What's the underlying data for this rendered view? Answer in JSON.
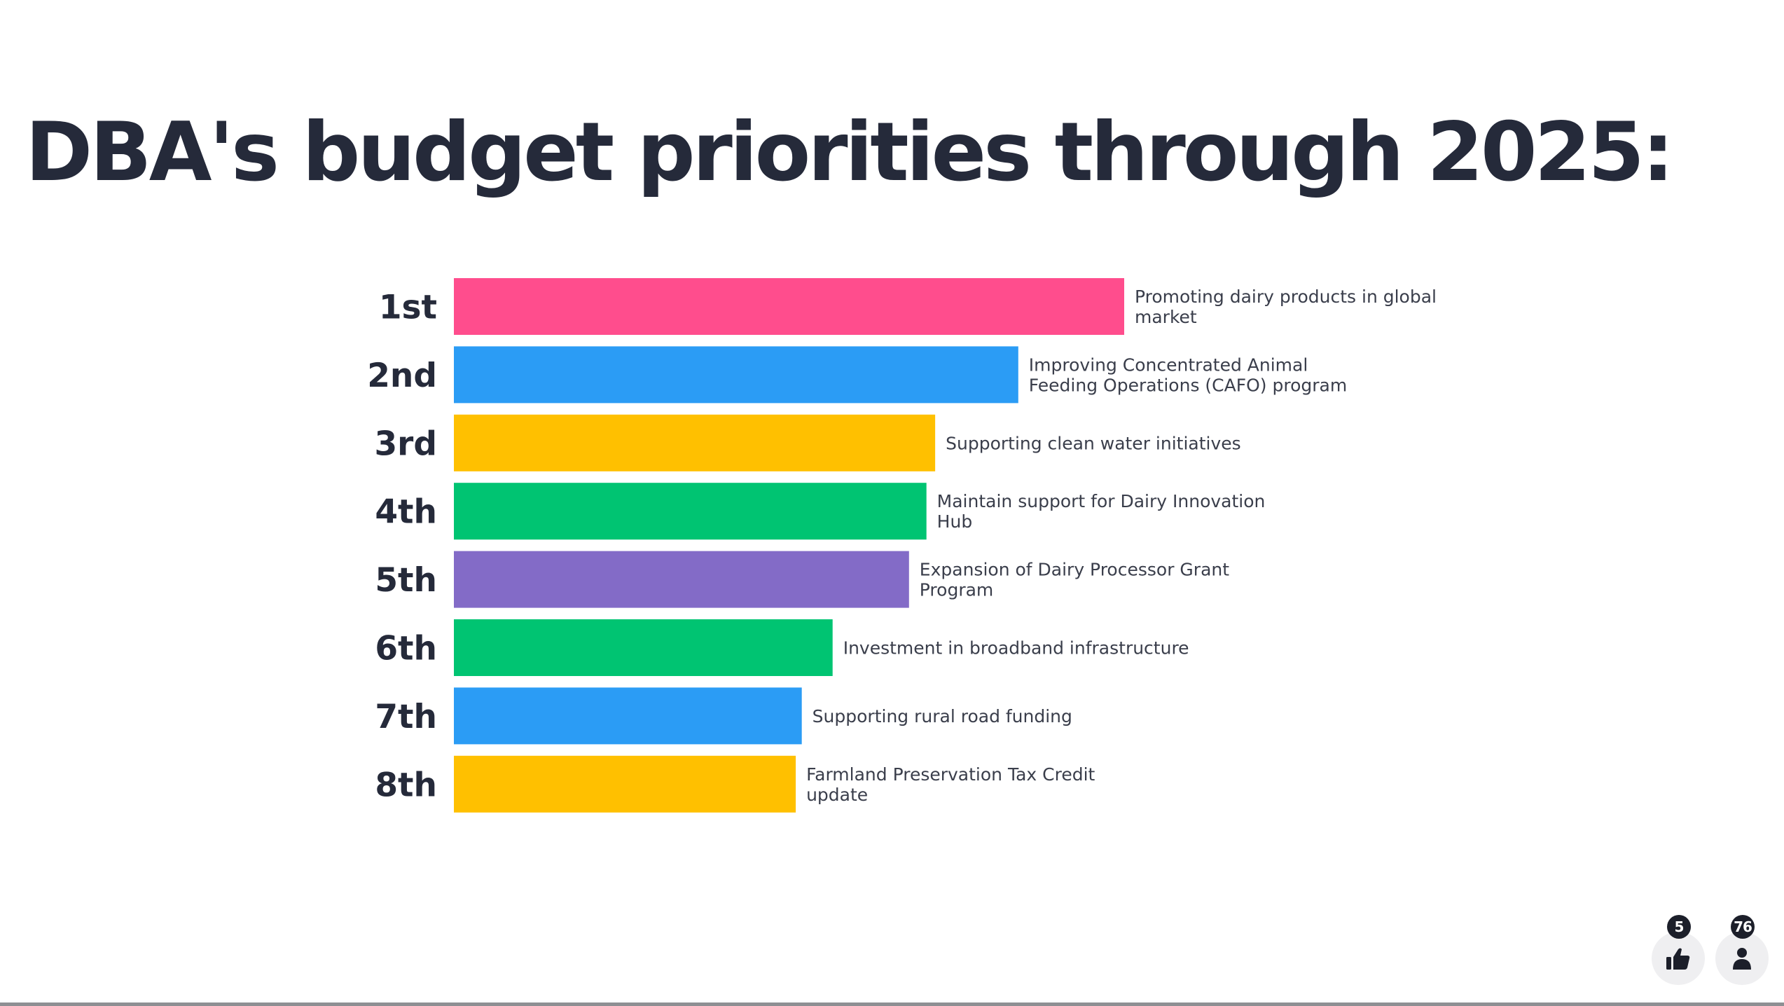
{
  "title": "DBA's budget priorities through 2025:",
  "chart_data": {
    "type": "bar",
    "orientation": "horizontal",
    "title": "DBA's budget priorities through 2025:",
    "categories": [
      "1st",
      "2nd",
      "3rd",
      "4th",
      "5th",
      "6th",
      "7th",
      "8th"
    ],
    "labels": [
      [
        "Promoting dairy products in global",
        "market"
      ],
      [
        "Improving Concentrated Animal",
        "Feeding Operations (CAFO) program"
      ],
      [
        "Supporting clean water initiatives"
      ],
      [
        "Maintain support for Dairy Innovation",
        "Hub"
      ],
      [
        "Expansion of Dairy Processor Grant",
        "Program"
      ],
      [
        "Investment in broadband infrastructure"
      ],
      [
        "Supporting rural road funding"
      ],
      [
        "Farmland Preservation Tax Credit",
        "update"
      ]
    ],
    "values": [
      100,
      84.2,
      71.8,
      70.5,
      67.9,
      56.5,
      51.9,
      51.0
    ],
    "xlim": [
      0,
      100
    ],
    "colors": [
      "#ff4d8d",
      "#2b9cf5",
      "#ffc000",
      "#00c472",
      "#836bc7",
      "#00c472",
      "#2b9cf5",
      "#ffc000"
    ],
    "grid": false,
    "legend": "none"
  },
  "footer": {
    "likes": "5",
    "participants": "76",
    "like_icon": "thumbs-up-icon",
    "participant_icon": "person-icon"
  }
}
